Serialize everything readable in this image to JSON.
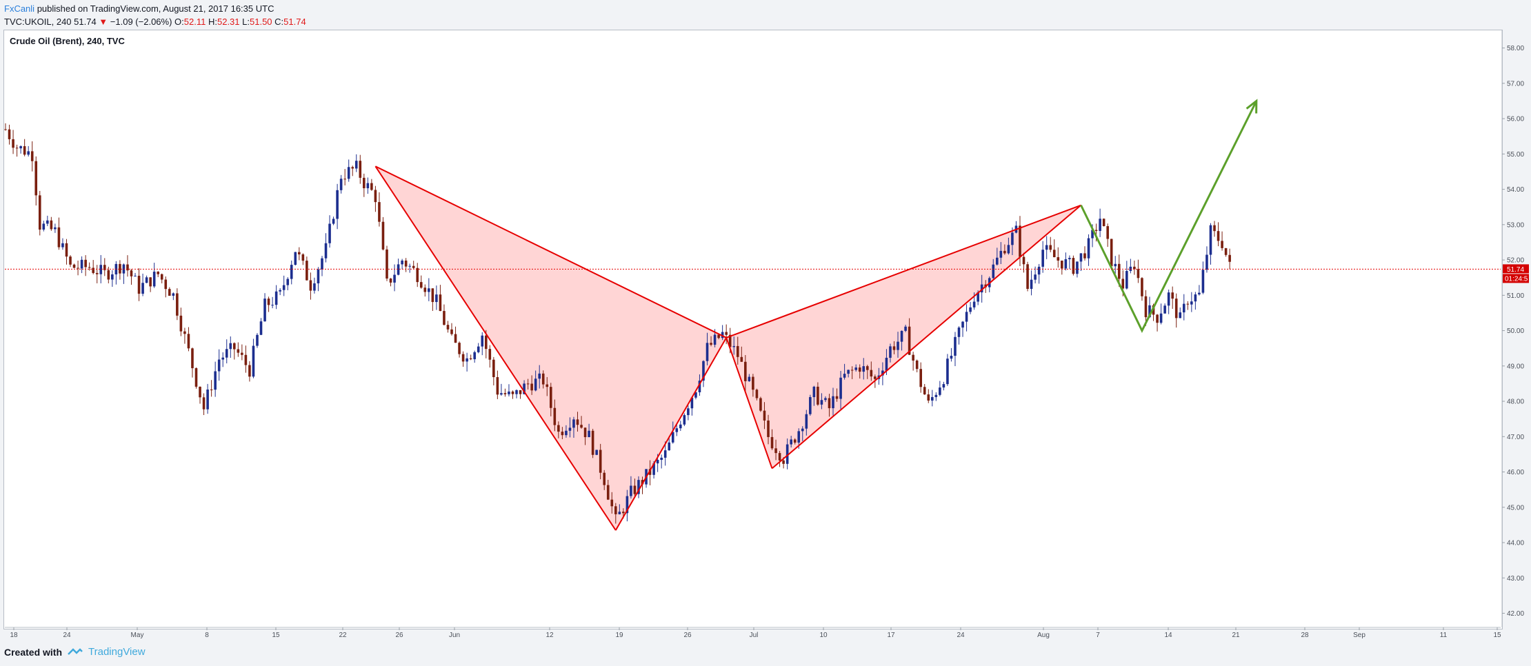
{
  "header": {
    "publisher": "FxCanli",
    "published_text": " published on TradingView.com, August 21, 2017 16:35 UTC",
    "symbol_line_prefix": "TVC:UKOIL, 240  51.74 ",
    "change": "−1.09 (−2.06%)",
    "open_label": "O:",
    "open": "52.11",
    "high_label": "H:",
    "high": "52.31",
    "low_label": "L:",
    "low": "51.50",
    "close_label": "C:",
    "close": "51.74",
    "down_arrow_icon": "triangle-down-icon"
  },
  "chart_title": "Crude Oil (Brent), 240, TVC",
  "footer": {
    "created_with": "Created with",
    "brand": "TradingView",
    "logo_icon": "tradingview-logo-icon"
  },
  "colors": {
    "bull_candle": "#1c2e8f",
    "bear_candle": "#7a1f0f",
    "pattern_line": "#e60000",
    "pattern_fill": "#ffb3b3",
    "projection": "#5ca02b",
    "price_line": "#e60000"
  },
  "chart_data": {
    "type": "candlestick",
    "title": "Crude Oil (Brent), 240, TVC",
    "ylim": [
      41.6,
      58.5
    ],
    "y_ticks": [
      "58.00",
      "57.00",
      "56.00",
      "55.00",
      "54.00",
      "53.00",
      "52.00",
      "51.00",
      "50.00",
      "49.00",
      "48.00",
      "47.00",
      "46.00",
      "45.00",
      "44.00",
      "43.00",
      "42.00"
    ],
    "x_ticks": [
      "18",
      "24",
      "May",
      "8",
      "15",
      "22",
      "26",
      "Jun",
      "12",
      "19",
      "26",
      "Jul",
      "10",
      "17",
      "24",
      "Aug",
      "7",
      "14",
      "21",
      "28",
      "Sep",
      "11",
      "15"
    ],
    "last_price": "51.74",
    "countdown": "01:24:5",
    "price_path": [
      {
        "t": 0,
        "p": 55.7
      },
      {
        "t": 3,
        "p": 55.2
      },
      {
        "t": 7,
        "p": 55.0
      },
      {
        "t": 9,
        "p": 53.0
      },
      {
        "t": 13,
        "p": 52.8
      },
      {
        "t": 17,
        "p": 51.8
      },
      {
        "t": 22,
        "p": 51.8
      },
      {
        "t": 26,
        "p": 51.6
      },
      {
        "t": 31,
        "p": 51.9
      },
      {
        "t": 35,
        "p": 51.2
      },
      {
        "t": 40,
        "p": 51.6
      },
      {
        "t": 44,
        "p": 51.0
      },
      {
        "t": 47,
        "p": 49.8
      },
      {
        "t": 52,
        "p": 47.8
      },
      {
        "t": 56,
        "p": 49.2
      },
      {
        "t": 60,
        "p": 49.5
      },
      {
        "t": 64,
        "p": 48.9
      },
      {
        "t": 68,
        "p": 50.7
      },
      {
        "t": 72,
        "p": 51.0
      },
      {
        "t": 76,
        "p": 52.3
      },
      {
        "t": 80,
        "p": 51.3
      },
      {
        "t": 84,
        "p": 52.3
      },
      {
        "t": 88,
        "p": 54.4
      },
      {
        "t": 92,
        "p": 54.6
      },
      {
        "t": 94,
        "p": 54.2
      },
      {
        "t": 97,
        "p": 53.8
      },
      {
        "t": 100,
        "p": 51.3
      },
      {
        "t": 104,
        "p": 52.0
      },
      {
        "t": 108,
        "p": 51.6
      },
      {
        "t": 113,
        "p": 50.8
      },
      {
        "t": 117,
        "p": 49.7
      },
      {
        "t": 121,
        "p": 49.2
      },
      {
        "t": 125,
        "p": 49.9
      },
      {
        "t": 129,
        "p": 48.3
      },
      {
        "t": 133,
        "p": 48.1
      },
      {
        "t": 137,
        "p": 48.5
      },
      {
        "t": 141,
        "p": 48.6
      },
      {
        "t": 145,
        "p": 47.1
      },
      {
        "t": 149,
        "p": 47.6
      },
      {
        "t": 153,
        "p": 47.0
      },
      {
        "t": 157,
        "p": 45.8
      },
      {
        "t": 160,
        "p": 44.6
      },
      {
        "t": 164,
        "p": 45.4
      },
      {
        "t": 169,
        "p": 46.0
      },
      {
        "t": 173,
        "p": 46.5
      },
      {
        "t": 177,
        "p": 47.5
      },
      {
        "t": 181,
        "p": 48.4
      },
      {
        "t": 184,
        "p": 49.5
      },
      {
        "t": 188,
        "p": 49.9
      },
      {
        "t": 192,
        "p": 49.3
      },
      {
        "t": 196,
        "p": 48.2
      },
      {
        "t": 200,
        "p": 47.0
      },
      {
        "t": 204,
        "p": 46.4
      },
      {
        "t": 208,
        "p": 47.2
      },
      {
        "t": 212,
        "p": 48.2
      },
      {
        "t": 216,
        "p": 47.8
      },
      {
        "t": 220,
        "p": 48.7
      },
      {
        "t": 224,
        "p": 49.0
      },
      {
        "t": 228,
        "p": 48.6
      },
      {
        "t": 232,
        "p": 49.5
      },
      {
        "t": 236,
        "p": 49.9
      },
      {
        "t": 239,
        "p": 48.8
      },
      {
        "t": 242,
        "p": 47.9
      },
      {
        "t": 246,
        "p": 48.7
      },
      {
        "t": 250,
        "p": 49.9
      },
      {
        "t": 254,
        "p": 51.0
      },
      {
        "t": 258,
        "p": 51.6
      },
      {
        "t": 262,
        "p": 52.4
      },
      {
        "t": 265,
        "p": 52.8
      },
      {
        "t": 268,
        "p": 51.2
      },
      {
        "t": 272,
        "p": 52.3
      },
      {
        "t": 276,
        "p": 52.0
      },
      {
        "t": 280,
        "p": 51.8
      },
      {
        "t": 284,
        "p": 52.4
      },
      {
        "t": 287,
        "p": 53.2
      },
      {
        "t": 290,
        "p": 52.0
      },
      {
        "t": 293,
        "p": 51.3
      },
      {
        "t": 296,
        "p": 51.9
      },
      {
        "t": 299,
        "p": 50.6
      },
      {
        "t": 302,
        "p": 50.4
      },
      {
        "t": 305,
        "p": 51.0
      },
      {
        "t": 308,
        "p": 50.3
      },
      {
        "t": 310,
        "p": 50.9
      },
      {
        "t": 313,
        "p": 51.0
      },
      {
        "t": 316,
        "p": 52.8
      },
      {
        "t": 319,
        "p": 52.5
      },
      {
        "t": 321,
        "p": 51.8
      }
    ],
    "pattern": {
      "points": [
        {
          "t": 97,
          "p": 54.65
        },
        {
          "t": 160,
          "p": 44.35
        },
        {
          "t": 189,
          "p": 49.8
        },
        {
          "t": 201,
          "p": 46.1
        },
        {
          "t": 282,
          "p": 53.55
        }
      ]
    },
    "projection": [
      {
        "t": 282,
        "p": 53.55
      },
      {
        "t": 298,
        "p": 50.0
      },
      {
        "t": 328,
        "p": 56.5
      }
    ]
  }
}
